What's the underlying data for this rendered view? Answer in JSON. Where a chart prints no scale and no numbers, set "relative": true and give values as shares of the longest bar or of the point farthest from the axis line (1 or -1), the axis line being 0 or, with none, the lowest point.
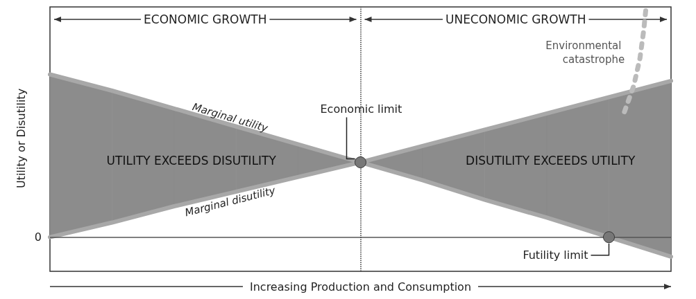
{
  "chart_data": {
    "type": "line",
    "relative": true,
    "xlabel": "Increasing Production and Consumption",
    "ylabel": "Utility or Disutility",
    "categories": [
      null,
      null,
      null,
      null,
      null,
      null,
      null,
      null,
      null,
      null,
      null
    ],
    "legend": false,
    "grid": false,
    "marker": "none",
    "series": [
      {
        "name": "Marginal utility",
        "color": "#a8a8a8",
        "values": [
          1,
          0.9,
          0.79,
          0.68,
          0.57,
          0.46,
          0.35,
          0.23,
          0.12,
          0,
          -0.12
        ],
        "lower": [
          0,
          0.09,
          0.19,
          0.28,
          0.37,
          0.46,
          0.35,
          0.23,
          0.12,
          0,
          -0.12
        ],
        "upper": [
          1,
          0.9,
          0.79,
          0.68,
          0.57,
          0.46,
          0.56,
          0.66,
          0.76,
          0.86,
          0.96
        ]
      },
      {
        "name": "Marginal disutility",
        "color": "#a8a8a8",
        "values": [
          0,
          0.09,
          0.19,
          0.28,
          0.37,
          0.46,
          0.56,
          0.66,
          0.76,
          0.86,
          0.96
        ]
      }
    ],
    "ref_lines": [
      {
        "axis": "y",
        "value": 0,
        "label": "0",
        "color": "#555555"
      }
    ],
    "annotations": [
      "ECONOMIC GROWTH",
      "UNECONOMIC GROWTH",
      "UTILITY EXCEEDS DISUTILITY",
      "DISUTILITY EXCEEDS UTILITY",
      "Economic limit",
      "Futility limit",
      "Environmental catastrophe"
    ]
  }
}
